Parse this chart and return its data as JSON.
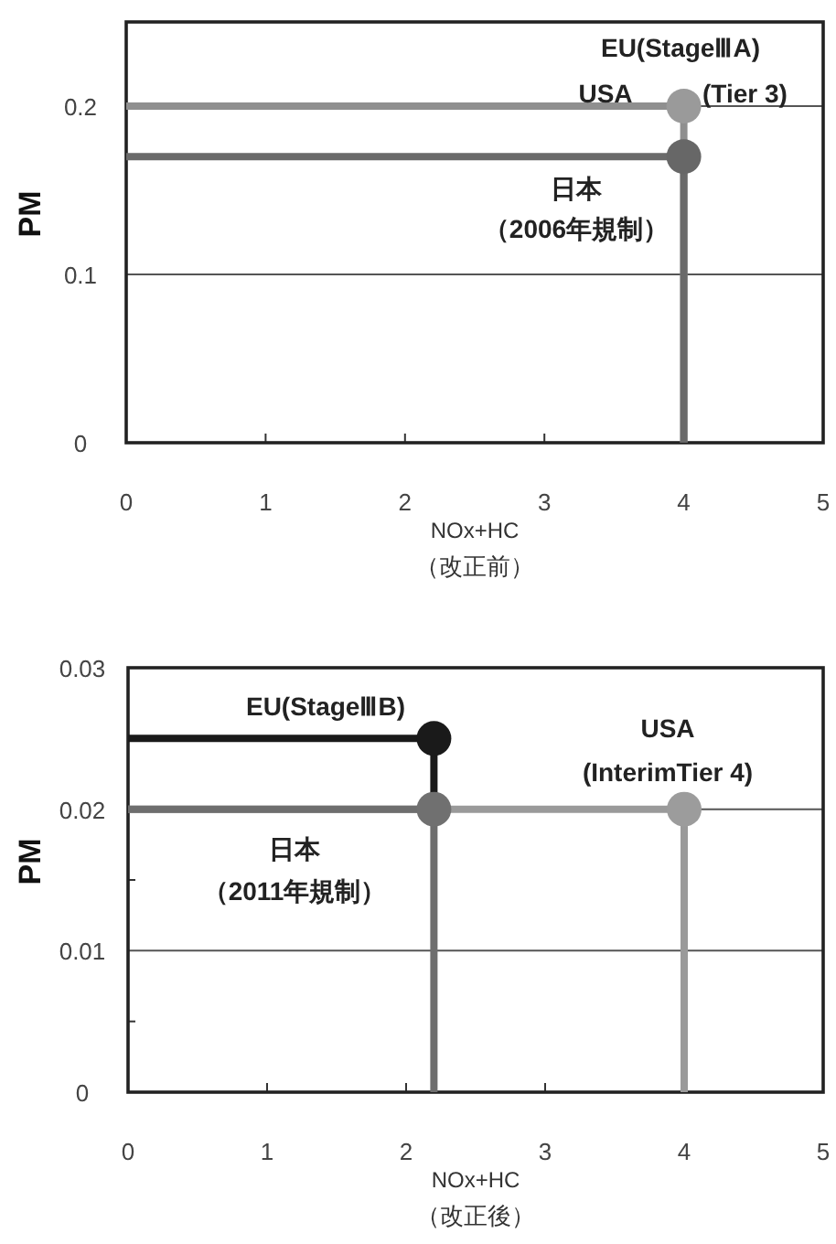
{
  "chart_data": [
    {
      "type": "line",
      "xlabel": "NOx+HC",
      "ylabel": "PM",
      "xlim": [
        0,
        5
      ],
      "ylim": [
        0,
        0.25
      ],
      "xticks": [
        0,
        1,
        2,
        3,
        4,
        5
      ],
      "yticks": [
        0,
        0.1,
        0.2
      ],
      "grid": "y",
      "series": [
        {
          "type": "line",
          "color": "#8f8f8f",
          "x": [
            0,
            4,
            4
          ],
          "values": [
            0.2,
            0.2,
            0
          ]
        },
        {
          "type": "line",
          "color": "#6a6a6a",
          "x": [
            0,
            4,
            4
          ],
          "values": [
            0.17,
            0.17,
            0
          ]
        },
        {
          "type": "scatter",
          "marker": "circle",
          "colors": [
            "#9a9a9a",
            "#676767"
          ],
          "x": [
            4,
            4
          ],
          "values": [
            0.2,
            0.17
          ]
        }
      ],
      "annotations": [
        "EU(StageⅢA)",
        "USA",
        "(Tier 3)",
        "日本",
        "（2006年規制）",
        "（改正前）"
      ]
    },
    {
      "type": "line",
      "xlabel": "NOx+HC",
      "ylabel": "PM",
      "xlim": [
        0,
        5
      ],
      "ylim": [
        0,
        0.03
      ],
      "xticks": [
        0,
        1,
        2,
        3,
        4,
        5
      ],
      "yticks": [
        0,
        {
          "value": 0.005,
          "label": null
        },
        0.01,
        {
          "value": 0.015,
          "label": null
        },
        0.02,
        {
          "value": 0.025,
          "label": null
        },
        0.03
      ],
      "grid": "y",
      "series": [
        {
          "type": "line",
          "color": "#9a9a9a",
          "x": [
            0,
            4,
            4
          ],
          "values": [
            0.02,
            0.02,
            0
          ]
        },
        {
          "type": "line",
          "color": "#6e6e6e",
          "x": [
            0,
            2.2,
            2.2
          ],
          "values": [
            0.02,
            0.02,
            0
          ]
        },
        {
          "type": "line",
          "color": "#1a1a1a",
          "x": [
            0,
            2.2,
            2.2
          ],
          "values": [
            0.025,
            0.025,
            0.02
          ]
        },
        {
          "type": "scatter",
          "marker": "circle",
          "colors": [
            "#1a1a1a",
            "#707070",
            "#9c9c9c"
          ],
          "x": [
            2.2,
            2.2,
            4
          ],
          "values": [
            0.025,
            0.02,
            0.02
          ]
        }
      ],
      "annotations": [
        "EU(StageⅢB)",
        "USA",
        "(InterimTier 4)",
        "日本",
        "（2011年規制）",
        "（改正後）"
      ]
    }
  ]
}
